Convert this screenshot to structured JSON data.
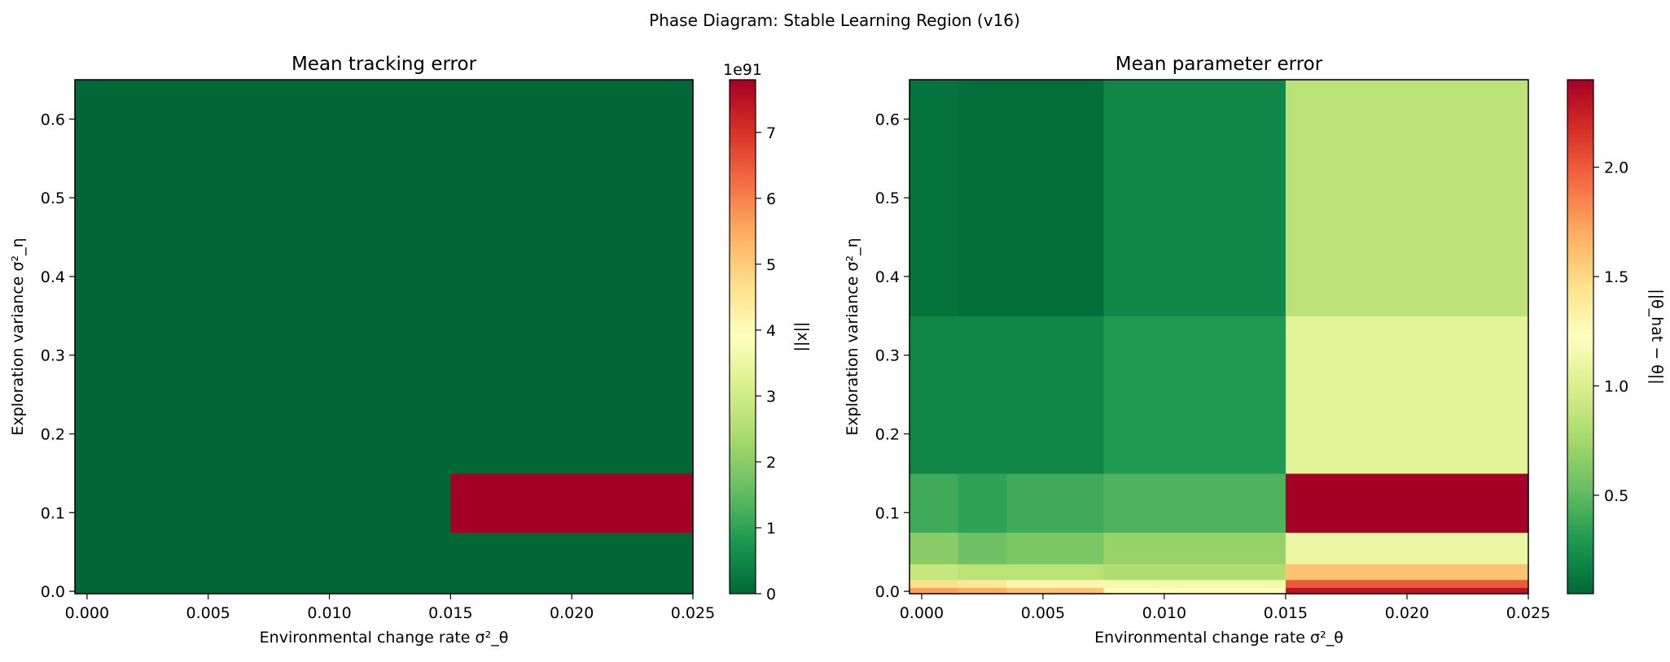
{
  "figure": {
    "suptitle": "Phase Diagram: Stable Learning Region (v16)"
  },
  "colormap": [
    "#006837",
    "#1a9850",
    "#66bd63",
    "#a6d96a",
    "#d9ef8b",
    "#ffffbf",
    "#fee08b",
    "#fdae61",
    "#f46d43",
    "#d73027",
    "#a50026"
  ],
  "chart_data": [
    {
      "type": "heatmap",
      "title": "Mean tracking error",
      "xlabel": "Environmental change rate σ²_θ",
      "ylabel": "Exploration variance σ²_η",
      "xlim": [
        -0.0005,
        0.025
      ],
      "ylim": [
        -0.003,
        0.65
      ],
      "xticks": [
        0.0,
        0.005,
        0.01,
        0.015,
        0.02,
        0.025
      ],
      "xtick_labels": [
        "0.000",
        "0.005",
        "0.010",
        "0.015",
        "0.020",
        "0.025"
      ],
      "yticks": [
        0.0,
        0.1,
        0.2,
        0.3,
        0.4,
        0.5,
        0.6
      ],
      "ytick_labels": [
        "0.0",
        "0.1",
        "0.2",
        "0.3",
        "0.4",
        "0.5",
        "0.6"
      ],
      "x_edges": [
        -0.0005,
        0.015,
        0.025
      ],
      "y_edges": [
        -0.003,
        0.075,
        0.15,
        0.65
      ],
      "values": [
        [
          0.0,
          0.0
        ],
        [
          0.0,
          7.8e+91
        ],
        [
          0.0,
          0.0
        ]
      ],
      "colorbar": {
        "label": "||x||",
        "min": 0,
        "max": 7.8e+91,
        "ticks": [
          0,
          1e+91,
          2e+91,
          3e+91,
          4e+91,
          5e+91,
          6e+91,
          7e+91
        ],
        "tick_labels": [
          "0",
          "1",
          "2",
          "3",
          "4",
          "5",
          "6",
          "7"
        ],
        "offset_text": "1e91"
      }
    },
    {
      "type": "heatmap",
      "title": "Mean parameter error",
      "xlabel": "Environmental change rate σ²_θ",
      "ylabel": "Exploration variance σ²_η",
      "xlim": [
        -0.0005,
        0.025
      ],
      "ylim": [
        -0.003,
        0.65
      ],
      "xticks": [
        0.0,
        0.005,
        0.01,
        0.015,
        0.02,
        0.025
      ],
      "xtick_labels": [
        "0.000",
        "0.005",
        "0.010",
        "0.015",
        "0.020",
        "0.025"
      ],
      "yticks": [
        0.0,
        0.1,
        0.2,
        0.3,
        0.4,
        0.5,
        0.6
      ],
      "ytick_labels": [
        "0.0",
        "0.1",
        "0.2",
        "0.3",
        "0.4",
        "0.5",
        "0.6"
      ],
      "x_edges": [
        -0.0005,
        0.0015,
        0.0035,
        0.0075,
        0.015,
        0.025
      ],
      "y_edges": [
        -0.003,
        0.005,
        0.015,
        0.035,
        0.075,
        0.15,
        0.35,
        0.65
      ],
      "values": [
        [
          1.75,
          1.7,
          1.6,
          1.25,
          2.3
        ],
        [
          1.45,
          1.4,
          1.3,
          1.15,
          2.0
        ],
        [
          0.9,
          0.85,
          0.85,
          0.8,
          1.6
        ],
        [
          0.65,
          0.55,
          0.6,
          0.7,
          1.1
        ],
        [
          0.4,
          0.35,
          0.4,
          0.45,
          2.4
        ],
        [
          0.2,
          0.2,
          0.2,
          0.3,
          1.05
        ],
        [
          0.1,
          0.08,
          0.08,
          0.2,
          0.85
        ]
      ],
      "colorbar": {
        "label": "||θ_hat − θ||",
        "min": 0.05,
        "max": 2.4,
        "ticks": [
          0.5,
          1.0,
          1.5,
          2.0
        ],
        "tick_labels": [
          "0.5",
          "1.0",
          "1.5",
          "2.0"
        ],
        "offset_text": ""
      }
    }
  ]
}
